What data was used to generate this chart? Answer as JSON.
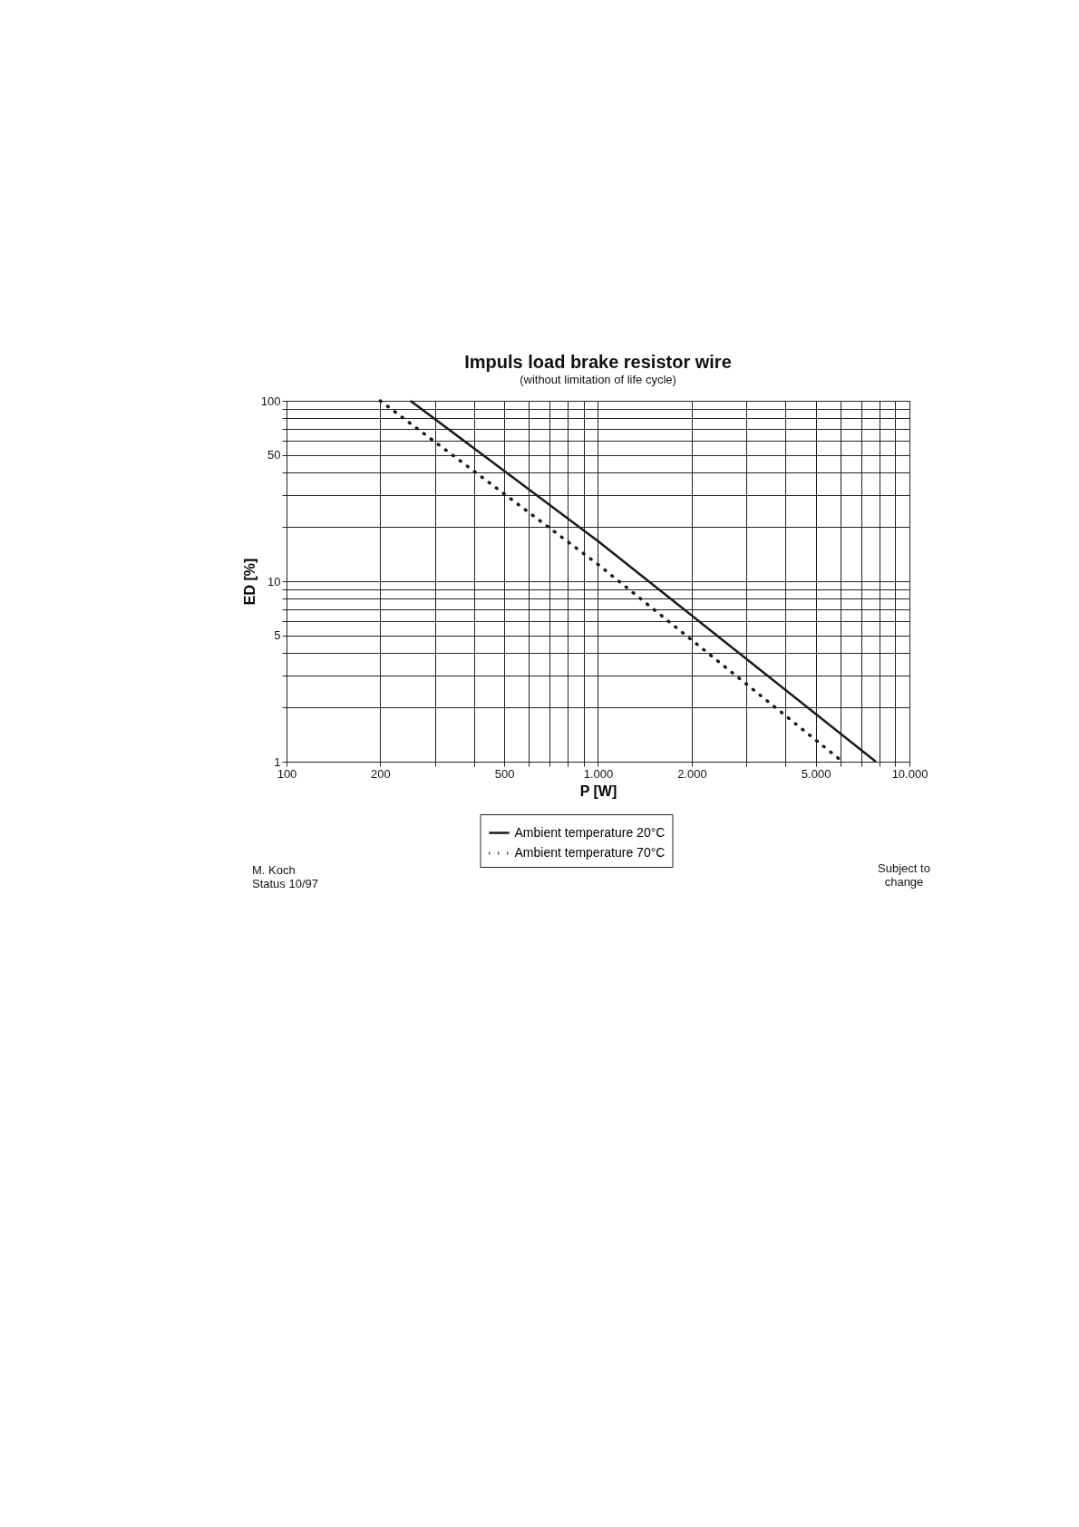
{
  "chart_data": {
    "type": "line",
    "title": "Impuls load brake resistor wire",
    "subtitle": "(without limitation of life cycle)",
    "xlabel": "P [W]",
    "ylabel": "ED [%]",
    "log": "xy",
    "grid": true,
    "legend": "bottom",
    "marker": "none",
    "series": [
      {
        "name": "Ambient temperature 20°C",
        "color": "#1a1a1a",
        "line_style": "solid",
        "x": [
          250,
          1000,
          7800
        ],
        "values": [
          100,
          16.7,
          1
        ]
      },
      {
        "name": "Ambient temperature 70°C",
        "color": "#1a1a1a",
        "line_style": "dotted",
        "x": [
          200,
          1000,
          6100
        ],
        "values": [
          100,
          12.4,
          1
        ]
      }
    ],
    "xlim": [
      100,
      10000
    ],
    "ylim": [
      1,
      100
    ],
    "xticks": [
      100,
      200,
      {
        "value": 300,
        "label": null
      },
      {
        "value": 400,
        "label": null
      },
      500,
      {
        "value": 600,
        "label": null
      },
      {
        "value": 700,
        "label": null
      },
      {
        "value": 800,
        "label": null
      },
      {
        "value": 900,
        "label": null
      },
      {
        "value": 1000,
        "label": "1.000"
      },
      {
        "value": 2000,
        "label": "2.000"
      },
      {
        "value": 3000,
        "label": null
      },
      {
        "value": 4000,
        "label": null
      },
      {
        "value": 5000,
        "label": "5.000"
      },
      {
        "value": 6000,
        "label": null
      },
      {
        "value": 7000,
        "label": null
      },
      {
        "value": 8000,
        "label": null
      },
      {
        "value": 9000,
        "label": null
      },
      {
        "value": 10000,
        "label": "10.000"
      }
    ],
    "yticks": [
      1,
      {
        "value": 2,
        "label": null
      },
      {
        "value": 3,
        "label": null
      },
      {
        "value": 4,
        "label": null
      },
      5,
      {
        "value": 6,
        "label": null
      },
      {
        "value": 7,
        "label": null
      },
      {
        "value": 8,
        "label": null
      },
      {
        "value": 9,
        "label": null
      },
      10,
      {
        "value": 20,
        "label": null
      },
      {
        "value": 30,
        "label": null
      },
      {
        "value": 40,
        "label": null
      },
      50,
      {
        "value": 60,
        "label": null
      },
      {
        "value": 70,
        "label": null
      },
      {
        "value": 80,
        "label": null
      },
      {
        "value": 90,
        "label": null
      },
      100
    ],
    "annotations": [
      "M. Koch",
      "Status 10/97",
      "Subject to change"
    ]
  }
}
